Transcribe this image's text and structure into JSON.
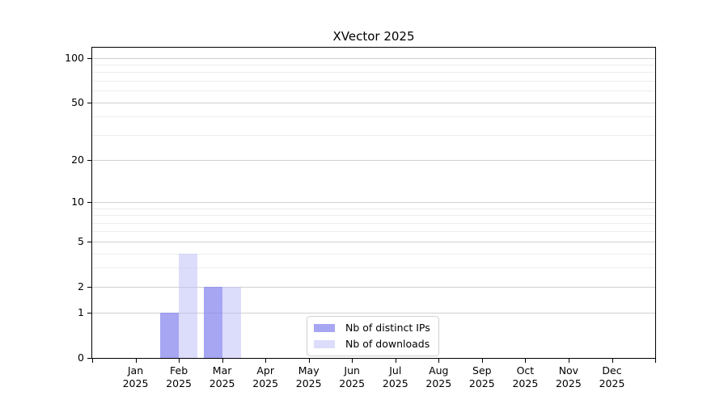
{
  "chart_data": {
    "type": "bar",
    "title": "XVector 2025",
    "categories": [
      "Jan 2025",
      "Feb 2025",
      "Mar 2025",
      "Apr 2025",
      "May 2025",
      "Jun 2025",
      "Jul 2025",
      "Aug 2025",
      "Sep 2025",
      "Oct 2025",
      "Nov 2025",
      "Dec 2025"
    ],
    "series": [
      {
        "name": "Nb of distinct IPs",
        "color": "rgba(132,132,238,0.72)",
        "values": [
          0,
          1,
          2,
          0,
          0,
          0,
          0,
          0,
          0,
          0,
          0,
          0
        ]
      },
      {
        "name": "Nb of downloads",
        "color": "rgba(186,186,247,0.5)",
        "values": [
          0,
          4,
          2,
          0,
          0,
          0,
          0,
          0,
          0,
          0,
          0,
          0
        ]
      }
    ],
    "xlabel": "",
    "ylabel": "",
    "y_axis": {
      "scale": "log1p",
      "major_ticks": [
        0,
        1,
        2,
        5,
        10,
        20,
        50,
        100
      ],
      "minor_ticks": [
        3,
        4,
        6,
        7,
        8,
        9,
        30,
        40,
        60,
        70,
        80,
        90
      ],
      "ylim": [
        0,
        117
      ],
      "grid": true
    },
    "legend": {
      "position": "lower center",
      "entries": [
        "Nb of distinct IPs",
        "Nb of downloads"
      ]
    }
  }
}
